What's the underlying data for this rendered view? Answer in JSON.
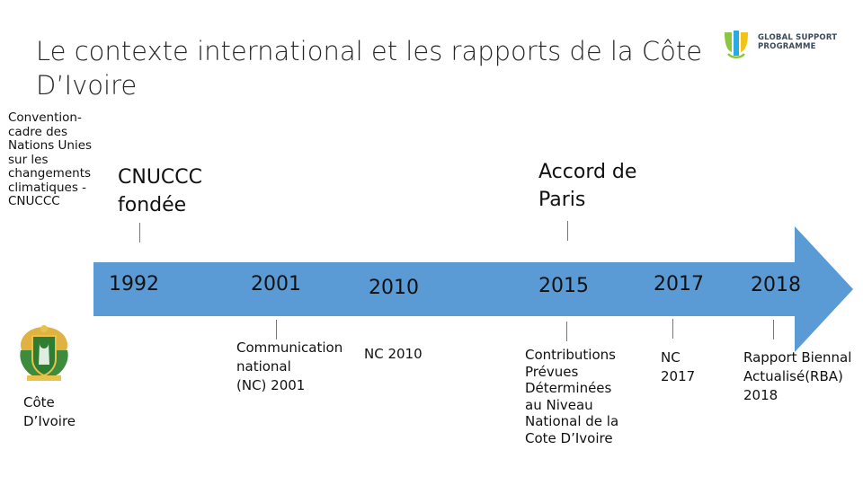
{
  "slide": {
    "title": "Le contexte international et les rapports de la Côte D’Ivoire",
    "logo_text_line1": "GLOBAL SUPPORT",
    "logo_text_line2": "PROGRAMME",
    "side_label": "Convention-cadre des Nations Unies sur les changements climatiques - CNUCCC",
    "emblem_label": "Côte D’Ivoire"
  },
  "timeline": {
    "arrow_color": "#5b9bd5",
    "above": {
      "cnuccc": "CNUCCC fondée",
      "paris": "Accord de Paris"
    },
    "years": [
      "1992",
      "2001",
      "2010",
      "2015",
      "2017",
      "2018"
    ],
    "below": {
      "y2001": "Communication national (NC) 2001",
      "y2010": "NC 2010",
      "y2015": "Contributions Prévues Déterminées au Niveau National de la Cote D’Ivoire",
      "y2017": "NC 2017",
      "y2018": "Rapport Biennal Actualisé(RBA) 2018"
    }
  },
  "icons": {
    "logo": "global-support-programme-logo",
    "emblem": "cote-divoire-coat-of-arms-icon"
  }
}
